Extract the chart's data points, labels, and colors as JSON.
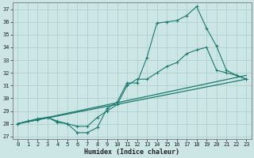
{
  "xlabel": "Humidex (Indice chaleur)",
  "xlim": [
    -0.5,
    23.5
  ],
  "ylim": [
    26.8,
    37.5
  ],
  "yticks": [
    27,
    28,
    29,
    30,
    31,
    32,
    33,
    34,
    35,
    36,
    37
  ],
  "xticks": [
    0,
    1,
    2,
    3,
    4,
    5,
    6,
    7,
    8,
    9,
    10,
    11,
    12,
    13,
    14,
    15,
    16,
    17,
    18,
    19,
    20,
    21,
    22,
    23
  ],
  "background_color": "#cce5e5",
  "grid_color": "#aacccc",
  "line_color": "#1a7a6e",
  "line1": {
    "x": [
      0,
      1,
      2,
      3,
      4,
      5,
      6,
      7,
      8,
      9,
      10,
      11,
      12,
      13,
      14,
      15,
      16,
      17,
      18,
      19,
      20,
      21,
      22,
      23
    ],
    "y": [
      28.0,
      28.2,
      28.3,
      28.5,
      28.1,
      28.0,
      27.3,
      27.3,
      27.7,
      29.2,
      29.7,
      31.2,
      31.2,
      33.2,
      35.9,
      36.0,
      36.1,
      36.5,
      37.2,
      35.5,
      34.1,
      32.2,
      31.8,
      31.5
    ]
  },
  "line2": {
    "x": [
      0,
      1,
      2,
      3,
      4,
      5,
      6,
      7,
      8,
      9,
      10,
      11,
      12,
      13,
      14,
      15,
      16,
      17,
      18,
      19,
      20,
      21,
      22,
      23
    ],
    "y": [
      28.0,
      28.2,
      28.4,
      28.5,
      28.2,
      28.0,
      27.8,
      27.8,
      28.5,
      29.0,
      29.5,
      31.0,
      31.5,
      31.5,
      32.0,
      32.5,
      32.8,
      33.5,
      33.8,
      34.0,
      32.2,
      32.0,
      31.8,
      31.5
    ]
  },
  "line3": {
    "x": [
      0,
      23
    ],
    "y": [
      28.0,
      31.5
    ]
  },
  "line4": {
    "x": [
      0,
      23
    ],
    "y": [
      28.0,
      31.8
    ]
  }
}
